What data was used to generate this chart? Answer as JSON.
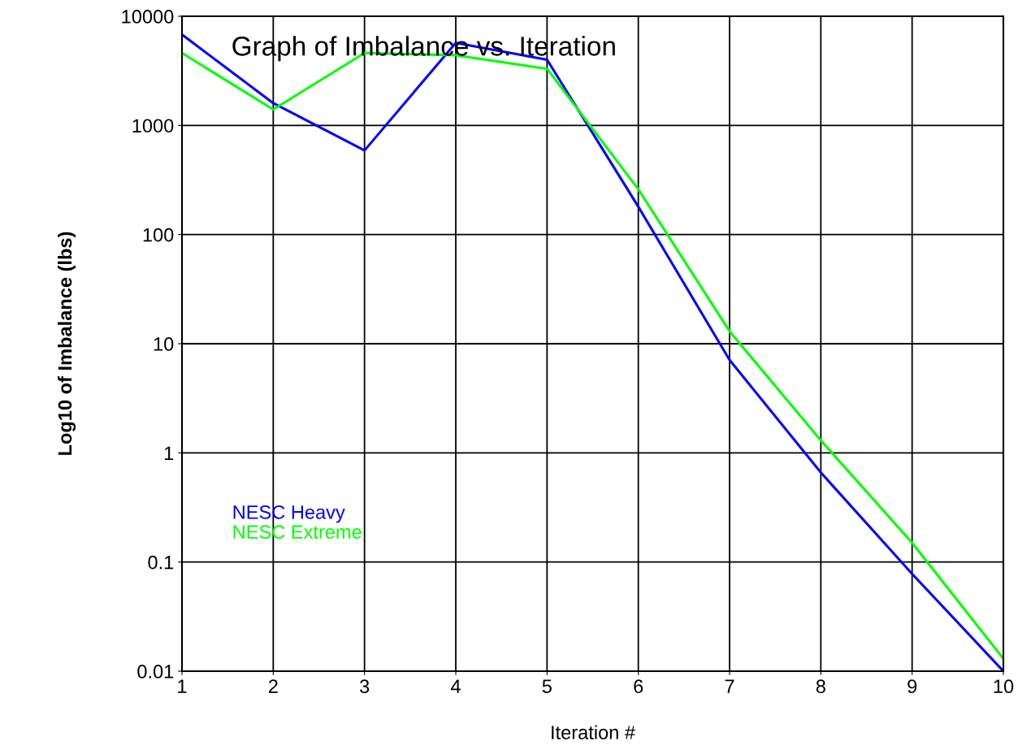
{
  "chart_data": {
    "type": "line",
    "title": "Graph of Imbalance vs. Iteration",
    "xlabel": "Iteration #",
    "ylabel": "Log10 of Imbalance (lbs)",
    "x": [
      1,
      2,
      3,
      4,
      5,
      6,
      7,
      8,
      9,
      10
    ],
    "series": [
      {
        "name": "NESC Heavy",
        "color": "#0000ff",
        "values": [
          6800,
          1600,
          590,
          5700,
          4000,
          180,
          7.1,
          0.66,
          0.078,
          0.01
        ]
      },
      {
        "name": "NESC Extreme",
        "color": "#00ff00",
        "values": [
          4600,
          1400,
          4600,
          4400,
          3300,
          260,
          13,
          1.3,
          0.15,
          0.013
        ]
      }
    ],
    "log": true,
    "xlim": [
      1,
      10
    ],
    "xticks": [
      1,
      2,
      3,
      4,
      5,
      6,
      7,
      8,
      9,
      10
    ],
    "ylim": [
      0.01,
      10000
    ],
    "yticks": [
      0.01,
      0.1,
      1,
      10,
      100,
      1000,
      10000
    ],
    "grid": true,
    "legend": "bottom left",
    "marker": "none",
    "line_style": "solid"
  }
}
